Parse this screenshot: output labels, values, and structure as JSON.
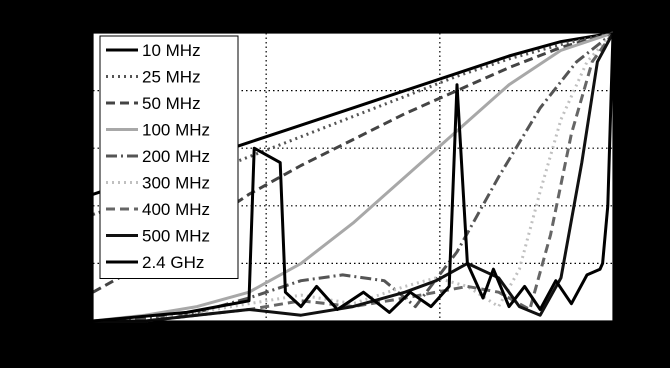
{
  "chart_data": {
    "type": "line",
    "title": "",
    "xlabel": "",
    "ylabel": "",
    "xlim": [
      0,
      1
    ],
    "ylim": [
      0,
      1
    ],
    "grid": true,
    "legend_placement": "top-left",
    "series": [
      {
        "name": "10 MHz",
        "color": "#000000",
        "dash": "solid",
        "x": [
          0,
          0.1,
          0.2,
          0.3,
          0.4,
          0.5,
          0.6,
          0.7,
          0.8,
          0.9,
          1.0
        ],
        "y": [
          0.44,
          0.5,
          0.56,
          0.62,
          0.68,
          0.74,
          0.8,
          0.86,
          0.92,
          0.97,
          1.0
        ]
      },
      {
        "name": "25 MHz",
        "color": "#555555",
        "dash": "dot",
        "x": [
          0,
          0.1,
          0.2,
          0.3,
          0.4,
          0.5,
          0.6,
          0.7,
          0.8,
          0.9,
          1.0
        ],
        "y": [
          0.37,
          0.43,
          0.5,
          0.57,
          0.64,
          0.71,
          0.78,
          0.85,
          0.91,
          0.96,
          1.0
        ]
      },
      {
        "name": "50 MHz",
        "color": "#444444",
        "dash": "dash",
        "x": [
          0,
          0.1,
          0.2,
          0.3,
          0.4,
          0.5,
          0.6,
          0.7,
          0.8,
          0.9,
          1.0
        ],
        "y": [
          0.1,
          0.2,
          0.32,
          0.44,
          0.54,
          0.63,
          0.72,
          0.8,
          0.88,
          0.95,
          1.0
        ]
      },
      {
        "name": "100 MHz",
        "color": "#a8a8a8",
        "dash": "solid",
        "x": [
          0,
          0.1,
          0.2,
          0.3,
          0.4,
          0.5,
          0.6,
          0.7,
          0.8,
          0.9,
          1.0
        ],
        "y": [
          0.0,
          0.02,
          0.05,
          0.1,
          0.2,
          0.34,
          0.5,
          0.66,
          0.82,
          0.94,
          1.0
        ]
      },
      {
        "name": "200 MHz",
        "color": "#555555",
        "dash": "dashdot",
        "x": [
          0,
          0.1,
          0.2,
          0.3,
          0.4,
          0.48,
          0.56,
          0.62,
          0.7,
          0.78,
          0.86,
          0.93,
          1.0
        ],
        "y": [
          0.0,
          0.01,
          0.03,
          0.08,
          0.14,
          0.16,
          0.14,
          0.05,
          0.24,
          0.5,
          0.74,
          0.9,
          1.0
        ]
      },
      {
        "name": "300 MHz",
        "color": "#c0c0c0",
        "dash": "dot",
        "x": [
          0,
          0.1,
          0.2,
          0.3,
          0.4,
          0.5,
          0.6,
          0.66,
          0.72,
          0.78,
          0.82,
          0.86,
          0.9,
          0.95,
          1.0
        ],
        "y": [
          0.0,
          0.0,
          0.03,
          0.06,
          0.09,
          0.06,
          0.12,
          0.15,
          0.12,
          0.05,
          0.18,
          0.45,
          0.7,
          0.9,
          1.0
        ]
      },
      {
        "name": "400 MHz",
        "color": "#666666",
        "dash": "dash",
        "x": [
          0,
          0.1,
          0.2,
          0.3,
          0.4,
          0.5,
          0.6,
          0.66,
          0.72,
          0.78,
          0.84,
          0.88,
          0.92,
          0.96,
          1.0
        ],
        "y": [
          0.0,
          0.0,
          0.02,
          0.04,
          0.07,
          0.05,
          0.08,
          0.1,
          0.12,
          0.1,
          0.04,
          0.3,
          0.65,
          0.9,
          1.0
        ]
      },
      {
        "name": "500 MHz",
        "color": "#111111",
        "dash": "solid",
        "x": [
          0,
          0.1,
          0.2,
          0.3,
          0.4,
          0.5,
          0.6,
          0.66,
          0.72,
          0.78,
          0.82,
          0.86,
          0.9,
          0.94,
          0.97,
          1.0
        ],
        "y": [
          0.0,
          0.0,
          0.02,
          0.04,
          0.02,
          0.05,
          0.1,
          0.14,
          0.2,
          0.15,
          0.05,
          0.02,
          0.15,
          0.55,
          0.9,
          1.0
        ]
      },
      {
        "name": "2.4 GHz",
        "color": "#000000",
        "dash": "solid",
        "x": [
          0,
          0.06,
          0.12,
          0.18,
          0.24,
          0.3,
          0.31,
          0.36,
          0.37,
          0.4,
          0.43,
          0.47,
          0.52,
          0.57,
          0.61,
          0.65,
          0.685,
          0.7,
          0.72,
          0.75,
          0.77,
          0.8,
          0.83,
          0.86,
          0.89,
          0.92,
          0.95,
          0.975,
          0.98,
          0.99,
          1.0
        ],
        "y": [
          0.0,
          0.01,
          0.02,
          0.03,
          0.05,
          0.07,
          0.6,
          0.55,
          0.1,
          0.05,
          0.12,
          0.04,
          0.1,
          0.03,
          0.1,
          0.05,
          0.12,
          0.82,
          0.2,
          0.08,
          0.18,
          0.05,
          0.12,
          0.04,
          0.14,
          0.06,
          0.16,
          0.18,
          0.2,
          0.4,
          1.0
        ]
      }
    ]
  }
}
